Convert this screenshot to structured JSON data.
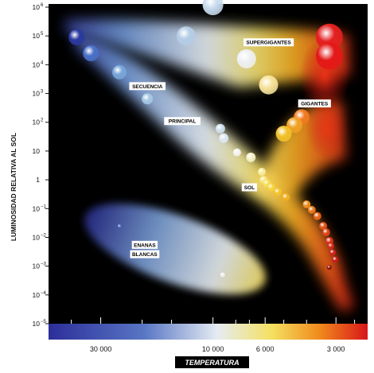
{
  "chart_data": {
    "type": "scatter",
    "xlabel": "TEMPERATURA",
    "ylabel": "LUMINOSIDAD RELATIVA AL SOL",
    "x_scale": "reversed-log",
    "y_scale": "log",
    "xlim": [
      50000,
      2200
    ],
    "ylim": [
      1e-05,
      1000000
    ],
    "x_ticks": [
      {
        "value": 30000,
        "label": "30 000"
      },
      {
        "value": 10000,
        "label": "10 000"
      },
      {
        "value": 6000,
        "label": "6 000"
      },
      {
        "value": 3000,
        "label": "3 000"
      }
    ],
    "y_ticks": [
      {
        "value": 1000000,
        "base": "10",
        "exp": "6"
      },
      {
        "value": 100000,
        "base": "10",
        "exp": "5"
      },
      {
        "value": 10000,
        "base": "10",
        "exp": "4"
      },
      {
        "value": 1000,
        "base": "10",
        "exp": "3"
      },
      {
        "value": 100,
        "base": "10",
        "exp": "2"
      },
      {
        "value": 10,
        "base": "10",
        "exp": ""
      },
      {
        "value": 1,
        "base": "1",
        "exp": ""
      },
      {
        "value": 0.1,
        "base": "10",
        "exp": "−1"
      },
      {
        "value": 0.01,
        "base": "10",
        "exp": "−2"
      },
      {
        "value": 0.001,
        "base": "10",
        "exp": "−3"
      },
      {
        "value": 0.0001,
        "base": "10",
        "exp": "−4"
      },
      {
        "value": 1e-05,
        "base": "10",
        "exp": "−5"
      }
    ],
    "region_labels": [
      {
        "text": "SUPERGIGANTES",
        "temp": 5800,
        "lum": 60000
      },
      {
        "text": "GIGANTES",
        "temp": 3700,
        "lum": 450
      },
      {
        "text": "SECUENCIA",
        "temp": 19000,
        "lum": 1800
      },
      {
        "text": "PRINCIPAL",
        "temp": 13500,
        "lum": 110
      },
      {
        "text": "SOL",
        "temp": 7000,
        "lum": 0.55
      },
      {
        "text": "ENANAS",
        "temp": 19500,
        "lum": 0.0055
      },
      {
        "text": "BLANCAS",
        "temp": 19500,
        "lum": 0.0026
      }
    ],
    "series": [
      {
        "points": [
          {
            "temp": 38000,
            "lum": 90000,
            "size": 10,
            "color": "#2a3aa0"
          },
          {
            "temp": 33000,
            "lum": 25000,
            "size": 10,
            "color": "#4a70c8"
          },
          {
            "temp": 25000,
            "lum": 5500,
            "size": 9,
            "color": "#78a6d8"
          },
          {
            "temp": 19000,
            "lum": 650,
            "size": 7,
            "color": "#a6c8e4"
          },
          {
            "temp": 9300,
            "lum": 60,
            "size": 6,
            "color": "#cfe0ee"
          },
          {
            "temp": 9000,
            "lum": 28,
            "size": 6,
            "color": "#dce8f2"
          },
          {
            "temp": 7900,
            "lum": 9,
            "size": 5,
            "color": "#f2f2f0"
          },
          {
            "temp": 6900,
            "lum": 6,
            "size": 6,
            "color": "#f4f0c8"
          },
          {
            "temp": 6200,
            "lum": 1.9,
            "size": 5,
            "color": "#f8ec9a"
          },
          {
            "temp": 6100,
            "lum": 1,
            "size": 5,
            "color": "#f8e680"
          },
          {
            "temp": 5900,
            "lum": 0.75,
            "size": 5,
            "color": "#f6de58"
          },
          {
            "temp": 5650,
            "lum": 0.55,
            "size": 5,
            "color": "#f6d440"
          },
          {
            "temp": 5300,
            "lum": 0.38,
            "size": 5,
            "color": "#f4c42c"
          },
          {
            "temp": 4900,
            "lum": 0.25,
            "size": 5,
            "color": "#f2b020"
          },
          {
            "temp": 4000,
            "lum": 0.14,
            "size": 5,
            "color": "#f09020"
          },
          {
            "temp": 3800,
            "lum": 0.09,
            "size": 5,
            "color": "#ec7a1c"
          },
          {
            "temp": 3600,
            "lum": 0.055,
            "size": 5,
            "color": "#e8661a"
          },
          {
            "temp": 3400,
            "lum": 0.025,
            "size": 5,
            "color": "#e45418"
          },
          {
            "temp": 3300,
            "lum": 0.015,
            "size": 5,
            "color": "#e04418"
          },
          {
            "temp": 3200,
            "lum": 0.0075,
            "size": 5,
            "color": "#dc3418"
          },
          {
            "temp": 3150,
            "lum": 0.005,
            "size": 4,
            "color": "#d82818"
          },
          {
            "temp": 3100,
            "lum": 0.003,
            "size": 4,
            "color": "#d42018"
          },
          {
            "temp": 3020,
            "lum": 0.0017,
            "size": 4,
            "color": "#c81a16"
          },
          {
            "temp": 3200,
            "lum": 0.0009,
            "size": 3,
            "color": "#8a0e0e"
          }
        ]
      },
      {
        "points": [
          {
            "temp": 10000,
            "lum": 1200000,
            "size": 13,
            "color": "#c8dcee"
          },
          {
            "temp": 13000,
            "lum": 100000,
            "size": 12,
            "color": "#b4cce6"
          },
          {
            "temp": 7200,
            "lum": 16000,
            "size": 12,
            "color": "#eef0f2"
          },
          {
            "temp": 5800,
            "lum": 2000,
            "size": 12,
            "color": "#f6e29a"
          },
          {
            "temp": 3200,
            "lum": 90000,
            "size": 17,
            "color": "#e42020"
          },
          {
            "temp": 3200,
            "lum": 20000,
            "size": 17,
            "color": "#e41818"
          }
        ]
      },
      {
        "points": [
          {
            "temp": 4200,
            "lum": 150,
            "size": 10,
            "color": "#f27a20"
          },
          {
            "temp": 4500,
            "lum": 80,
            "size": 10,
            "color": "#f0a224"
          },
          {
            "temp": 5000,
            "lum": 40,
            "size": 10,
            "color": "#f2c22c"
          }
        ]
      },
      {
        "points": [
          {
            "temp": 25000,
            "lum": 0.025,
            "size": 2,
            "color": "#6a8cd8"
          },
          {
            "temp": 9100,
            "lum": 0.0005,
            "size": 3,
            "color": "#f0f0f0"
          }
        ]
      }
    ]
  }
}
